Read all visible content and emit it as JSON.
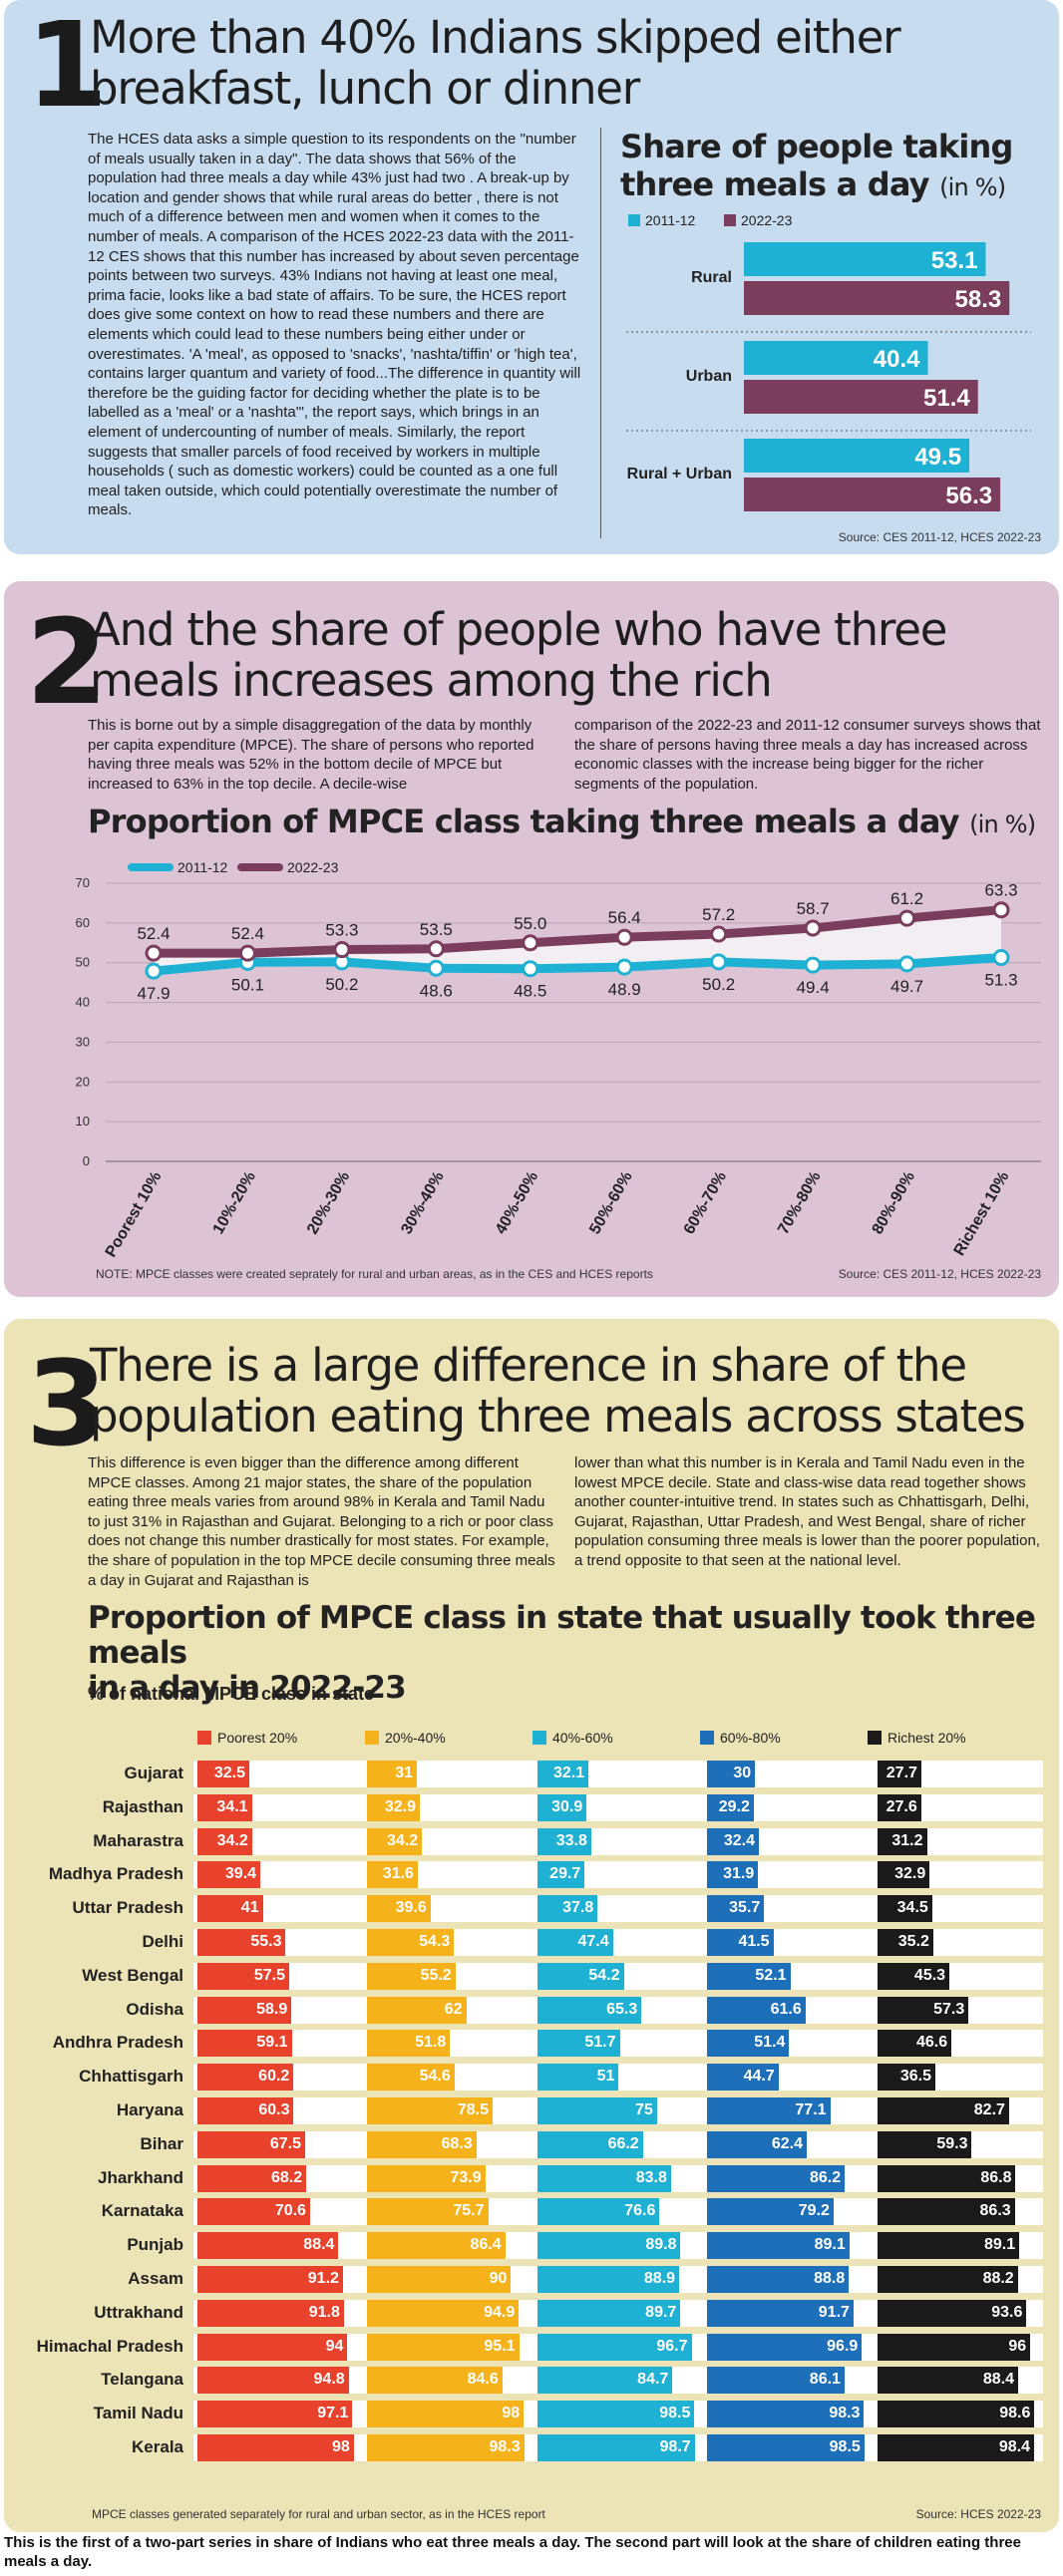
{
  "s1": {
    "number": "1",
    "title_l1": "More than 40% Indians skipped either",
    "title_l2": "breakfast, lunch or dinner",
    "body": "The HCES data asks a simple question to its respondents on the \"number of meals usually taken in a day\". The data shows that 56% of the population had three meals a day while 43% just had two . A break-up by location and gender shows that while rural areas do better , there is not much of a difference between men and women when it comes to the number of meals. A comparison of the HCES 2022-23 data with the 2011-12 CES shows that this number has increased by about seven percentage points between two surveys. 43% Indians not having at least one meal, prima facie, looks like a bad state of affairs. To be sure, the HCES report does give some context on how to read these numbers and there are elements which could lead to these numbers being either under or overestimates. 'A 'meal', as opposed to 'snacks', 'nashta/tiffin' or 'high tea', contains larger quantum and variety of food...The difference in quantity will therefore be the guiding factor for deciding whether the plate is to be labelled as a 'meal' or a 'nashta'\", the report says, which brings in an element of undercounting of number of meals. Similarly, the report suggests that smaller parcels of food received by workers in multiple households ( such as domestic workers) could be counted as a one full meal taken outside, which could potentially overestimate the number of meals.",
    "chart_title_l1": "Share of people taking",
    "chart_title_l2": "three meals a day",
    "chart_unit": "(in %)",
    "source": "Source: CES 2011-12, HCES 2022-23"
  },
  "s2": {
    "number": "2",
    "title_l1": "And the share of people who have three",
    "title_l2": "meals increases among the rich",
    "body_left": "This is borne out by a simple disaggregation of the data by monthly per capita expenditure (MPCE). The share of persons who reported having three meals was 52% in the bottom decile of MPCE but increased to 63% in the top decile. A decile-wise",
    "body_right": "comparison of the 2022-23 and 2011-12 consumer surveys shows that the share of persons having three meals a day has increased across economic classes with the increase being bigger for the richer segments of the population.",
    "chart_title": "Proportion of MPCE class taking three meals a day",
    "chart_unit": "(in %)",
    "note": "NOTE: MPCE classes were created seprately for rural and urban areas, as in the CES and HCES reports",
    "source": "Source: CES 2011-12, HCES 2022-23"
  },
  "s3": {
    "number": "3",
    "title_l1": "There is a large difference in share of the",
    "title_l2": "population eating three meals across states",
    "body_left": "This difference is even bigger than the difference among different MPCE classes. Among 21 major states, the share of the population eating three meals varies from around 98% in Kerala and Tamil Nadu to just 31% in Rajasthan and Gujarat. Belonging to a rich or poor class does not change this number drastically for most states. For example, the share of population in the top MPCE decile consuming three meals a day in Gujarat and Rajasthan is",
    "body_right": "lower than what this number is in Kerala and Tamil Nadu even in the lowest MPCE decile. State and class-wise data read together shows another counter-intuitive trend. In states such as Chhattisgarh, Delhi, Gujarat, Rajasthan, Uttar Pradesh, and West Bengal, share of richer population consuming three meals is lower than the poorer population, a trend opposite to that seen at the national level.",
    "chart_title_l1": "Proportion of MPCE class in state that usually took three meals",
    "chart_title_l2": "in a day in 2022-23",
    "chart_subtitle": "% of national MPCE class in state",
    "note": "MPCE classes generated separately for rural and urban sector, as in the HCES report",
    "source": "Source: HCES 2022-23"
  },
  "footer": "This is the first of a two-part series in share of Indians who eat three meals a day. The second part will look at the share of children eating three meals a day.",
  "chart_data": [
    {
      "type": "bar",
      "orientation": "horizontal",
      "title": "Share of people taking three meals a day (in %)",
      "categories": [
        "Rural",
        "Urban",
        "Rural + Urban"
      ],
      "series": [
        {
          "name": "2011-12",
          "color": "#1fb1d4",
          "values": [
            53.1,
            40.4,
            49.5
          ]
        },
        {
          "name": "2022-23",
          "color": "#7a3d5c",
          "values": [
            58.3,
            51.4,
            56.3
          ]
        }
      ],
      "xlim": [
        0,
        60
      ],
      "legend": "top-left"
    },
    {
      "type": "line",
      "title": "Proportion of MPCE class taking three meals a day (in %)",
      "categories": [
        "Poorest 10%",
        "10%-20%",
        "20%-30%",
        "30%-40%",
        "40%-50%",
        "50%-60%",
        "60%-70%",
        "70%-80%",
        "80%-90%",
        "Richest 10%"
      ],
      "series": [
        {
          "name": "2011-12",
          "color": "#1fb1d4",
          "values": [
            47.9,
            50.1,
            50.2,
            48.6,
            48.5,
            48.9,
            50.2,
            49.4,
            49.7,
            51.3
          ]
        },
        {
          "name": "2022-23",
          "color": "#7a3d5c",
          "values": [
            52.4,
            52.4,
            53.3,
            53.5,
            55.0,
            56.4,
            57.2,
            58.7,
            61.2,
            63.3
          ]
        }
      ],
      "value_labels_2011": [
        "47.9",
        "50.1",
        "50.2",
        "48.6",
        "48.5",
        "48.9",
        "50.2",
        "49.4",
        "49.7",
        "51.3"
      ],
      "value_labels_2022": [
        "52.4",
        "52.4",
        "53.3",
        "53.5",
        "55.0",
        "56.4",
        "57.2",
        "58.7",
        "61.2",
        "63.3"
      ],
      "ylim": [
        0,
        70
      ],
      "yticks": [
        "0",
        "10",
        "20",
        "30",
        "40",
        "50",
        "60",
        "70"
      ],
      "grid": true,
      "legend": "top-left"
    },
    {
      "type": "bar",
      "orientation": "horizontal",
      "title": "Proportion of MPCE class in state that usually took three meals in a day in 2022-23",
      "categories": [
        "Gujarat",
        "Rajasthan",
        "Maharastra",
        "Madhya Pradesh",
        "Uttar Pradesh",
        "Delhi",
        "West Bengal",
        "Odisha",
        "Andhra Pradesh",
        "Chhattisgarh",
        "Haryana",
        "Bihar",
        "Jharkhand",
        "Karnataka",
        "Punjab",
        "Assam",
        "Uttrakhand",
        "Himachal Pradesh",
        "Telangana",
        "Tamil Nadu",
        "Kerala"
      ],
      "series": [
        {
          "name": "Poorest 20%",
          "color": "#e8412c",
          "values": [
            32.5,
            34.1,
            34.2,
            39.4,
            41,
            55.3,
            57.5,
            58.9,
            59.1,
            60.2,
            60.3,
            67.5,
            68.2,
            70.6,
            88.4,
            91.2,
            91.8,
            94,
            94.8,
            97.1,
            98
          ]
        },
        {
          "name": "20%-40%",
          "color": "#f6b21b",
          "values": [
            31,
            32.9,
            34.2,
            31.6,
            39.6,
            54.3,
            55.2,
            62,
            51.8,
            54.6,
            78.5,
            68.3,
            73.9,
            75.7,
            86.4,
            90,
            94.9,
            95.1,
            84.6,
            98,
            98.3
          ]
        },
        {
          "name": "40%-60%",
          "color": "#1fb1d4",
          "values": [
            32.1,
            30.9,
            33.8,
            29.7,
            37.8,
            47.4,
            54.2,
            65.3,
            51.7,
            51,
            75,
            66.2,
            83.8,
            76.6,
            89.8,
            88.9,
            89.7,
            96.7,
            84.7,
            98.5,
            98.7
          ]
        },
        {
          "name": "60%-80%",
          "color": "#1d6fba",
          "values": [
            30,
            29.2,
            32.4,
            31.9,
            35.7,
            41.5,
            52.1,
            61.6,
            51.4,
            44.7,
            77.1,
            62.4,
            86.2,
            79.2,
            89.1,
            88.8,
            91.7,
            96.9,
            86.1,
            98.3,
            98.5
          ]
        },
        {
          "name": "Richest 20%",
          "color": "#1a1a1a",
          "values": [
            27.7,
            27.6,
            31.2,
            32.9,
            34.5,
            35.2,
            45.3,
            57.3,
            46.6,
            36.5,
            82.7,
            59.3,
            86.8,
            86.3,
            89.1,
            88.2,
            93.6,
            96,
            88.4,
            98.6,
            98.4
          ]
        }
      ],
      "value_labels": [
        [
          "32.5",
          "31",
          "32.1",
          "30",
          "27.7"
        ],
        [
          "34.1",
          "32.9",
          "30.9",
          "29.2",
          "27.6"
        ],
        [
          "34.2",
          "34.2",
          "33.8",
          "32.4",
          "31.2"
        ],
        [
          "39.4",
          "31.6",
          "29.7",
          "31.9",
          "32.9"
        ],
        [
          "41",
          "39.6",
          "37.8",
          "35.7",
          "34.5"
        ],
        [
          "55.3",
          "54.3",
          "47.4",
          "41.5",
          "35.2"
        ],
        [
          "57.5",
          "55.2",
          "54.2",
          "52.1",
          "45.3"
        ],
        [
          "58.9",
          "62",
          "65.3",
          "61.6",
          "57.3"
        ],
        [
          "59.1",
          "51.8",
          "51.7",
          "51.4",
          "46.6"
        ],
        [
          "60.2",
          "54.6",
          "51",
          "44.7",
          "36.5"
        ],
        [
          "60.3",
          "78.5",
          "75",
          "77.1",
          "82.7"
        ],
        [
          "67.5",
          "68.3",
          "66.2",
          "62.4",
          "59.3"
        ],
        [
          "68.2",
          "73.9",
          "83.8",
          "86.2",
          "86.8"
        ],
        [
          "70.6",
          "75.7",
          "76.6",
          "79.2",
          "86.3"
        ],
        [
          "88.4",
          "86.4",
          "89.8",
          "89.1",
          "89.1"
        ],
        [
          "91.2",
          "90",
          "88.9",
          "88.8",
          "88.2"
        ],
        [
          "91.8",
          "94.9",
          "89.7",
          "91.7",
          "93.6"
        ],
        [
          "94",
          "95.1",
          "96.7",
          "96.9",
          "96"
        ],
        [
          "94.8",
          "84.6",
          "84.7",
          "86.1",
          "88.4"
        ],
        [
          "97.1",
          "98",
          "98.5",
          "98.3",
          "98.6"
        ],
        [
          "98",
          "98.3",
          "98.7",
          "98.5",
          "98.4"
        ]
      ],
      "xlim": [
        0,
        100
      ],
      "legend": "top"
    }
  ]
}
